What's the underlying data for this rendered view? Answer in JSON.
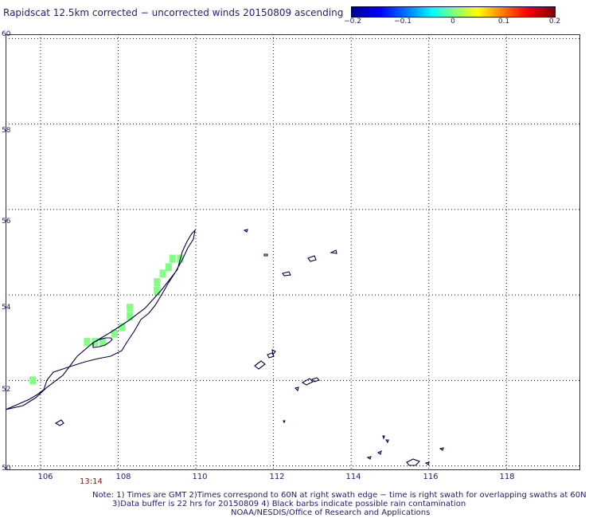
{
  "title": "Rapidscat 12.5km corrected − uncorrected winds 20150809 ascending",
  "colorbar": {
    "ticks": [
      "−0.2",
      "−0.1",
      "0",
      "0.1",
      "0.2"
    ],
    "colors": [
      "#00008f",
      "#0000ff",
      "#0080ff",
      "#00ffff",
      "#80ff80",
      "#ffff00",
      "#ff8000",
      "#ff0000",
      "#800000"
    ]
  },
  "axes": {
    "x_ticks": [
      "106",
      "108",
      "110",
      "112",
      "114",
      "116",
      "118"
    ],
    "y_ticks": [
      "60",
      "58",
      "56",
      "54",
      "52",
      "50"
    ],
    "x_range": [
      105.1,
      119.9
    ],
    "y_range": [
      49.9,
      60.1
    ]
  },
  "time_label": "13:14",
  "notes": {
    "line1": "Note: 1) Times are GMT 2)Times correspond to 60N at right swath edge − time is right swath for overlapping swaths at 60N",
    "line2": "3)Data buffer is 22 hrs for 20150809 4) Black barbs indicate possible rain contamination",
    "line3": "NOAA/NESDIS/Office of Research and Applications"
  },
  "chart_data": {
    "type": "heatmap",
    "value_color": "#80ff80",
    "cells_lon_lat": [
      [
        105.8,
        52.0
      ],
      [
        107.2,
        52.9
      ],
      [
        107.4,
        52.9
      ],
      [
        107.6,
        52.9
      ],
      [
        107.9,
        53.1
      ],
      [
        108.1,
        53.25
      ],
      [
        108.3,
        53.5
      ],
      [
        108.3,
        53.7
      ],
      [
        109.0,
        54.1
      ],
      [
        109.0,
        54.3
      ],
      [
        109.15,
        54.5
      ],
      [
        109.3,
        54.65
      ],
      [
        109.4,
        54.85
      ],
      [
        109.6,
        54.85
      ]
    ],
    "grid": true,
    "coastline_color": "#000050"
  }
}
